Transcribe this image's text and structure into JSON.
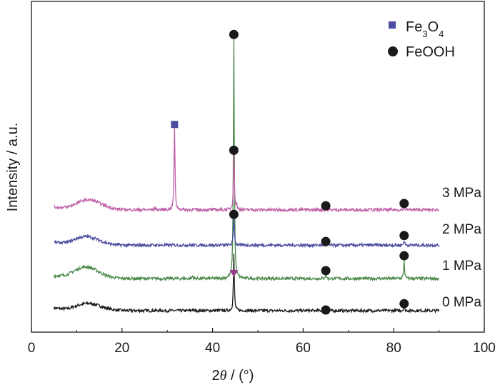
{
  "chart_data": {
    "type": "line",
    "xlabel": "2θ / (°)",
    "xlabel_parts": {
      "var": "2",
      "theta": "θ",
      "unit": " / (°)"
    },
    "ylabel": "Intensity / a.u.",
    "xlim": [
      0,
      100
    ],
    "ylim": [
      0,
      100
    ],
    "xticks": [
      0,
      20,
      40,
      60,
      80,
      100
    ],
    "xtick_labels": [
      "0",
      "20",
      "40",
      "60",
      "80",
      "100"
    ],
    "yticks_shown": false,
    "grid": false,
    "legend_placement": "top-right",
    "legend": [
      {
        "label": "Fe",
        "sub1": "3",
        "mid": "O",
        "sub2": "4",
        "marker": "square",
        "color": "#4b4ba0"
      },
      {
        "label": "FeOOH",
        "marker": "circle",
        "color": "#1a1a1a"
      }
    ],
    "series": [
      {
        "name": "0 MPa",
        "color": "#1a1a1a",
        "x_range": [
          5,
          90
        ],
        "baseline": 6.5,
        "hump": {
          "center": 12.5,
          "height": 2.2,
          "width": 4
        },
        "peaks": [
          {
            "x": 44.7,
            "height": 17
          },
          {
            "x": 65.0,
            "height": 0.6
          },
          {
            "x": 82.3,
            "height": 1.8
          },
          {
            "x": 35.6,
            "height": 0.5
          }
        ]
      },
      {
        "name": "1 MPa",
        "color": "#4a8a4a",
        "x_range": [
          5,
          90
        ],
        "baseline": 16.2,
        "hump": {
          "center": 12,
          "height": 3.5,
          "width": 4
        },
        "peaks": [
          {
            "x": 44.7,
            "height": 73
          },
          {
            "x": 65.0,
            "height": 1.6
          },
          {
            "x": 82.3,
            "height": 5.5
          },
          {
            "x": 35.6,
            "height": 0.8
          }
        ]
      },
      {
        "name": "2 MPa",
        "color": "#4b4ba0",
        "x_range": [
          5,
          90
        ],
        "baseline": 26.3,
        "hump": {
          "center": 12,
          "height": 2.6,
          "width": 4
        },
        "peaks": [
          {
            "x": 44.7,
            "height": 9.3
          },
          {
            "x": 65.0,
            "height": 0.4
          },
          {
            "x": 82.3,
            "height": 1.5
          }
        ]
      },
      {
        "name": "3 MPa",
        "color": "#c060a8",
        "x_range": [
          5,
          90
        ],
        "baseline": 37,
        "hump": {
          "center": 12.5,
          "height": 3,
          "width": 4
        },
        "peaks": [
          {
            "x": 31.6,
            "height": 25.5
          },
          {
            "x": 44.7,
            "height": 18
          },
          {
            "x": 82.3,
            "height": 1
          },
          {
            "x": 27.3,
            "height": 0.7
          },
          {
            "x": 45.3,
            "height": 1.5
          }
        ]
      }
    ],
    "markers": [
      {
        "type": "square",
        "phase": "Fe3O4",
        "x": 31.6,
        "y": 62.8
      },
      {
        "type": "circle",
        "phase": "FeOOH",
        "x": 44.7,
        "y": 90
      },
      {
        "type": "circle",
        "phase": "FeOOH",
        "x": 44.7,
        "y": 55
      },
      {
        "type": "circle",
        "phase": "FeOOH",
        "x": 44.7,
        "y": 35.6
      },
      {
        "type": "circle",
        "phase": "FeOOH",
        "x": 65,
        "y": 38.2
      },
      {
        "type": "circle",
        "phase": "FeOOH",
        "x": 82.3,
        "y": 38.9
      },
      {
        "type": "circle",
        "phase": "FeOOH",
        "x": 65,
        "y": 27.4
      },
      {
        "type": "circle",
        "phase": "FeOOH",
        "x": 82.3,
        "y": 29.2
      },
      {
        "type": "circle",
        "phase": "FeOOH",
        "x": 65,
        "y": 18.6
      },
      {
        "type": "circle",
        "phase": "FeOOH",
        "x": 82.3,
        "y": 23.1
      },
      {
        "type": "circle",
        "phase": "FeOOH",
        "x": 65,
        "y": 6.7
      },
      {
        "type": "circle",
        "phase": "FeOOH",
        "x": 82.3,
        "y": 8.6
      },
      {
        "type": "triangle-down",
        "x": 44.7,
        "y": 17.7,
        "color": "#9a3a8a"
      }
    ],
    "series_labels": [
      {
        "text": "3 MPa",
        "y": 41
      },
      {
        "text": "2 MPa",
        "y": 30
      },
      {
        "text": "1 MPa",
        "y": 19
      },
      {
        "text": "0 MPa",
        "y": 8
      }
    ]
  }
}
